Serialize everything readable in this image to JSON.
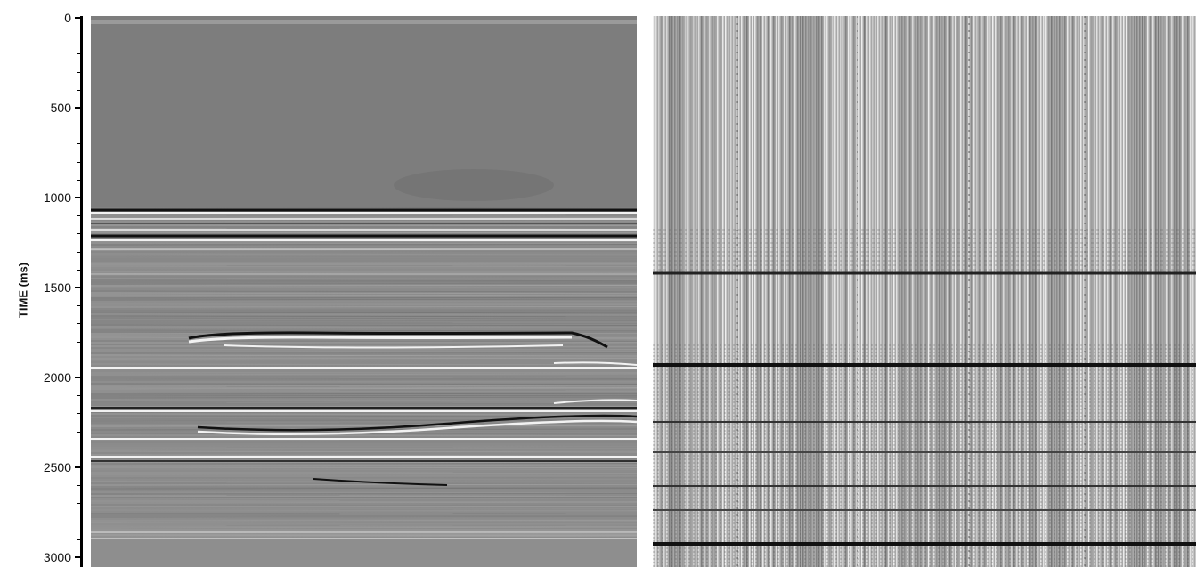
{
  "axis": {
    "title": "TIME (ms)",
    "ticks": [
      "0",
      "500",
      "1000",
      "1500",
      "2000",
      "2500",
      "3000"
    ],
    "tick_values": [
      0,
      500,
      1000,
      1500,
      2000,
      2500,
      3000
    ],
    "range": [
      0,
      3000
    ]
  },
  "panels": [
    {
      "name": "seismic-section-left"
    },
    {
      "name": "seismic-section-right"
    }
  ],
  "colors": {
    "background": "#ffffff",
    "left_base": "#8a8a8a",
    "right_base": "#a9a9a9",
    "event_dark": "#111111",
    "event_light": "#f2f2f2"
  }
}
